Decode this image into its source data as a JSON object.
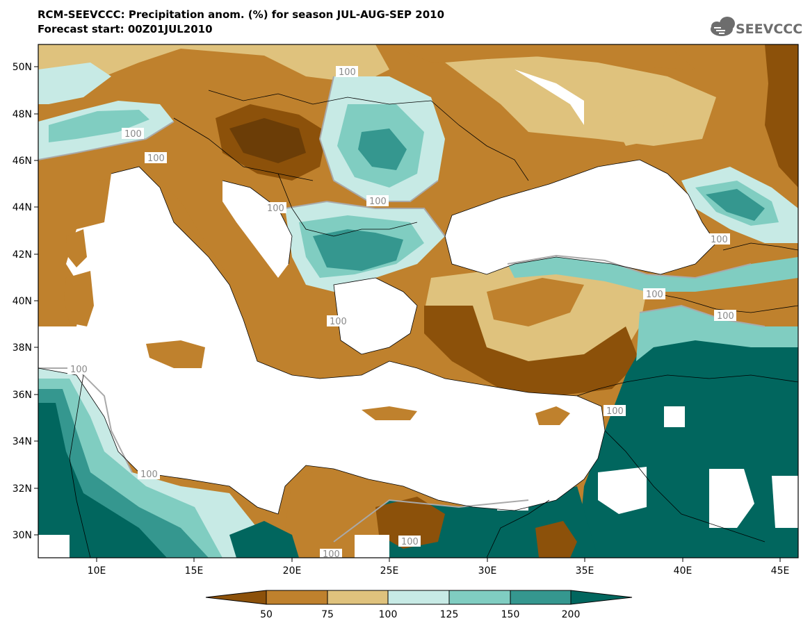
{
  "title": {
    "line1": "RCM-SEEVCCC: Precipitation anom. (%) for season JUL-AUG-SEP 2010",
    "line2": "Forecast start: 00Z01JUL2010"
  },
  "logo": {
    "text": "SEEVCCC",
    "icon": "cloud-icon",
    "color": "#6d6d6d"
  },
  "map": {
    "lat_labels": [
      "50N",
      "48N",
      "46N",
      "44N",
      "42N",
      "40N",
      "38N",
      "36N",
      "34N",
      "32N",
      "30N"
    ],
    "lon_labels": [
      "10E",
      "15E",
      "20E",
      "25E",
      "30E",
      "35E",
      "40E",
      "45E"
    ],
    "contour_labels": [
      "100",
      "100",
      "100",
      "100",
      "100",
      "100",
      "100",
      "100",
      "100",
      "100",
      "100",
      "100",
      "100",
      "100"
    ],
    "region": "Eastern Mediterranean / Balkans / Black Sea / Anatolia"
  },
  "colorbar": {
    "ticks": [
      "50",
      "75",
      "100",
      "125",
      "150",
      "200"
    ],
    "colors": [
      "#8c510a",
      "#bf812d",
      "#dfc27d",
      "#c7eae5",
      "#80cdc1",
      "#35978f",
      "#01665e"
    ]
  }
}
